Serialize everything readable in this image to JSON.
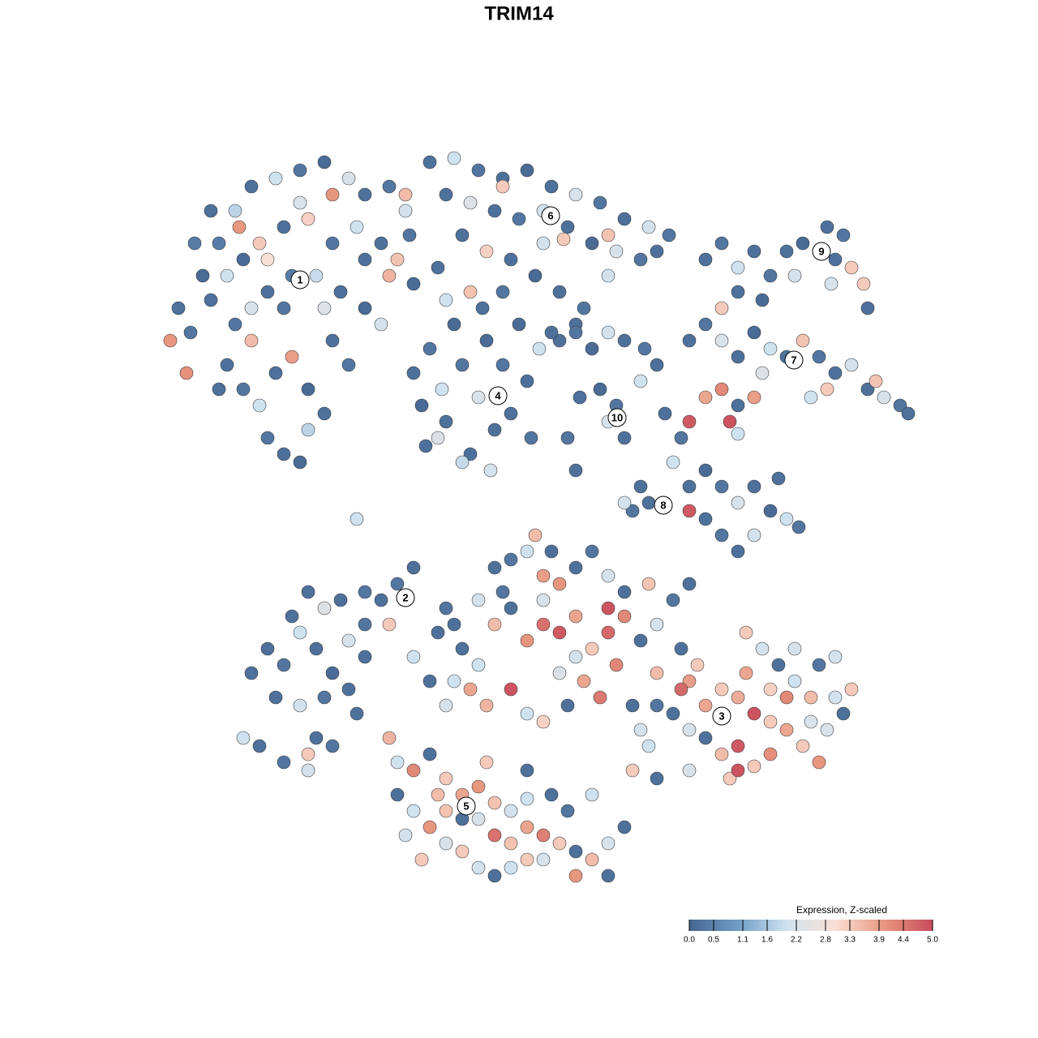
{
  "chart_data": {
    "type": "scatter",
    "title": "TRIM14",
    "xlim": [
      0,
      1000
    ],
    "ylim": [
      0,
      1000
    ],
    "clim": [
      0,
      5
    ],
    "colors": [
      "#456690",
      "#6f9cc6",
      "#cfe2f0",
      "#fae0d4",
      "#e8977f",
      "#c94b5c"
    ],
    "marker_edge_color": "#3a3a3a",
    "colorbar_title": "Expression, Z-scaled",
    "colorbar_ticks": [
      {
        "value": 0,
        "label": "0.0"
      },
      0.5,
      1.1,
      1.6,
      2.2,
      2.8,
      3.3,
      3.9,
      4.4,
      {
        "value": 5,
        "label": "5.0"
      }
    ],
    "annotations": [
      {
        "text": "1",
        "x": 220,
        "y": 755
      },
      {
        "text": "2",
        "x": 350,
        "y": 363
      },
      {
        "text": "3",
        "x": 740,
        "y": 217
      },
      {
        "text": "4",
        "x": 464,
        "y": 612
      },
      {
        "text": "5",
        "x": 425,
        "y": 106
      },
      {
        "text": "6",
        "x": 529,
        "y": 834
      },
      {
        "text": "7",
        "x": 829,
        "y": 656
      },
      {
        "text": "8",
        "x": 668,
        "y": 477
      },
      {
        "text": "9",
        "x": 863,
        "y": 790
      },
      {
        "text": "10",
        "x": 611,
        "y": 585
      }
    ],
    "x": [
      70,
      85,
      60,
      100,
      120,
      140,
      160,
      190,
      220,
      250,
      280,
      300,
      330,
      350,
      110,
      130,
      150,
      170,
      200,
      230,
      260,
      290,
      320,
      340,
      360,
      140,
      160,
      180,
      210,
      240,
      270,
      300,
      320,
      130,
      150,
      170,
      190,
      210,
      230,
      250,
      180,
      200,
      220,
      230,
      260,
      280,
      120,
      80,
      160,
      200,
      180,
      145,
      260,
      330,
      110,
      250,
      300,
      355,
      90,
      220,
      380,
      410,
      440,
      470,
      500,
      530,
      560,
      590,
      620,
      650,
      675,
      400,
      430,
      460,
      490,
      520,
      550,
      580,
      610,
      640,
      420,
      450,
      480,
      510,
      540,
      570,
      600,
      390,
      430,
      350,
      470,
      545,
      600,
      660,
      470,
      560,
      400,
      520,
      360,
      370,
      380,
      395,
      400,
      410,
      420,
      430,
      440,
      450,
      460,
      465,
      470,
      480,
      490,
      500,
      505,
      515,
      375,
      420,
      455,
      390,
      445,
      540,
      560,
      580,
      600,
      620,
      645,
      660,
      590,
      610,
      600,
      620,
      565,
      640,
      550,
      530,
      720,
      740,
      760,
      780,
      800,
      820,
      840,
      860,
      880,
      900,
      915,
      830,
      760,
      740,
      790,
      870,
      890,
      920,
      875,
      700,
      720,
      740,
      760,
      780,
      800,
      820,
      840,
      860,
      880,
      900,
      920,
      940,
      960,
      870,
      850,
      930,
      720,
      740,
      760,
      780,
      700,
      750,
      790,
      970,
      760,
      670,
      690,
      680,
      700,
      720,
      740,
      760,
      780,
      800,
      820,
      835,
      720,
      740,
      760,
      780,
      650,
      630,
      700,
      640,
      620,
      810,
      560,
      180,
      200,
      220,
      240,
      260,
      280,
      300,
      320,
      340,
      360,
      350,
      230,
      250,
      270,
      300,
      210,
      190,
      220,
      250,
      280,
      300,
      400,
      290,
      150,
      170,
      200,
      230,
      240,
      260,
      230,
      330,
      390,
      380,
      360,
      160,
      290,
      420,
      440,
      460,
      480,
      500,
      520,
      540,
      560,
      580,
      600,
      620,
      640,
      660,
      680,
      700,
      460,
      480,
      500,
      520,
      540,
      560,
      580,
      600,
      620,
      650,
      520,
      470,
      440,
      410,
      430,
      480,
      500,
      520,
      550,
      570,
      590,
      610,
      630,
      660,
      690,
      450,
      400,
      540,
      600,
      510,
      530,
      410,
      560,
      700,
      720,
      740,
      760,
      780,
      800,
      820,
      840,
      860,
      870,
      890,
      900,
      880,
      850,
      830,
      810,
      790,
      770,
      830,
      860,
      880,
      760,
      740,
      720,
      700,
      680,
      650,
      630,
      660,
      700,
      750,
      800,
      760,
      690,
      660,
      640,
      770,
      820,
      850,
      800,
      780,
      710,
      340,
      360,
      380,
      400,
      420,
      440,
      460,
      480,
      500,
      520,
      540,
      560,
      580,
      600,
      620,
      500,
      480,
      460,
      440,
      420,
      400,
      380,
      360,
      340,
      400,
      420,
      460,
      480,
      520,
      550,
      580,
      530,
      370,
      350,
      450,
      500,
      600,
      560,
      440,
      390,
      500,
      330
    ],
    "y": [
      720,
      690,
      680,
      760,
      800,
      840,
      870,
      880,
      890,
      900,
      880,
      860,
      870,
      840,
      730,
      760,
      780,
      800,
      820,
      830,
      800,
      820,
      800,
      780,
      750,
      700,
      720,
      740,
      760,
      760,
      740,
      720,
      700,
      650,
      620,
      600,
      640,
      660,
      620,
      590,
      560,
      540,
      530,
      570,
      680,
      650,
      620,
      640,
      680,
      720,
      780,
      820,
      860,
      760,
      840,
      720,
      780,
      810,
      800,
      850,
      900,
      905,
      890,
      880,
      890,
      870,
      860,
      850,
      830,
      820,
      810,
      860,
      850,
      840,
      830,
      840,
      820,
      800,
      790,
      780,
      810,
      790,
      780,
      760,
      740,
      720,
      760,
      770,
      740,
      860,
      870,
      805,
      810,
      790,
      740,
      700,
      730,
      800,
      640,
      600,
      670,
      620,
      580,
      700,
      650,
      540,
      610,
      680,
      570,
      615,
      650,
      590,
      700,
      630,
      560,
      670,
      550,
      530,
      520,
      560,
      720,
      680,
      690,
      670,
      690,
      680,
      670,
      650,
      620,
      600,
      580,
      560,
      610,
      630,
      560,
      690,
      780,
      800,
      770,
      790,
      760,
      790,
      800,
      790,
      780,
      770,
      750,
      760,
      740,
      720,
      730,
      820,
      810,
      720,
      750,
      680,
      700,
      680,
      660,
      690,
      670,
      660,
      680,
      660,
      640,
      650,
      620,
      610,
      600,
      620,
      610,
      630,
      610,
      620,
      600,
      610,
      580,
      580,
      640,
      590,
      565,
      590,
      560,
      530,
      500,
      520,
      500,
      480,
      500,
      470,
      460,
      450,
      460,
      440,
      420,
      440,
      480,
      470,
      470,
      500,
      480,
      510,
      520,
      300,
      280,
      320,
      300,
      270,
      310,
      330,
      360,
      380,
      400,
      360,
      370,
      350,
      360,
      370,
      340,
      240,
      230,
      240,
      250,
      290,
      350,
      220,
      190,
      180,
      160,
      150,
      190,
      180,
      170,
      330,
      320,
      260,
      290,
      270,
      460,
      300,
      280,
      330,
      350,
      310,
      330,
      320,
      340,
      300,
      320,
      340,
      310,
      330,
      360,
      380,
      400,
      410,
      420,
      390,
      380,
      400,
      420,
      390,
      370,
      380,
      360,
      370,
      360,
      260,
      250,
      250,
      220,
      210,
      230,
      260,
      240,
      280,
      230,
      270,
      300,
      230,
      230,
      270,
      350,
      440,
      420,
      330,
      290,
      260,
      230,
      250,
      240,
      220,
      210,
      200,
      180,
      160,
      200,
      220,
      250,
      240,
      240,
      260,
      280,
      300,
      320,
      300,
      280,
      290,
      180,
      170,
      190,
      200,
      220,
      180,
      150,
      140,
      150,
      140,
      170,
      150,
      250,
      230,
      200,
      270,
      240,
      210,
      250,
      155,
      280,
      160,
      150,
      170,
      140,
      120,
      130,
      110,
      100,
      80,
      70,
      60,
      50,
      40,
      60,
      80,
      40,
      30,
      20,
      30,
      50,
      60,
      80,
      100,
      120,
      100,
      90,
      70,
      60,
      40,
      100,
      120,
      120,
      40,
      70,
      160,
      150,
      20,
      20,
      90,
      120,
      115,
      190
    ],
    "values": [
      0.2,
      0.3,
      4.0,
      0.1,
      0.4,
      1.8,
      0.2,
      2.0,
      0.3,
      0.1,
      2.2,
      0.2,
      0.3,
      2.1,
      0.2,
      2.0,
      0.1,
      3.3,
      0.2,
      3.2,
      0.3,
      2.0,
      0.2,
      3.4,
      0.1,
      0.3,
      2.2,
      0.2,
      0.4,
      1.9,
      0.2,
      0.1,
      2.1,
      0.2,
      0.3,
      2.0,
      0.2,
      3.9,
      0.1,
      0.2,
      0.3,
      0.2,
      0.1,
      1.8,
      0.2,
      0.3,
      0.2,
      4.1,
      3.5,
      0.3,
      3.0,
      4.0,
      4.0,
      3.6,
      0.2,
      2.3,
      0.2,
      0.3,
      0.4,
      2.2,
      0.2,
      2.0,
      0.3,
      0.2,
      0.1,
      0.2,
      2.2,
      0.3,
      0.2,
      2.1,
      0.3,
      0.2,
      2.3,
      0.2,
      0.3,
      2.0,
      0.2,
      0.1,
      2.2,
      0.3,
      0.2,
      3.2,
      0.2,
      0.1,
      0.2,
      0.3,
      2.1,
      0.2,
      3.4,
      3.5,
      3.3,
      3.3,
      3.4,
      0.2,
      0.3,
      0.2,
      2.0,
      2.1,
      0.2,
      0.1,
      0.3,
      2.0,
      0.2,
      0.1,
      0.3,
      0.2,
      2.2,
      0.1,
      0.2,
      2.4,
      0.3,
      0.2,
      0.1,
      0.2,
      0.3,
      2.0,
      0.2,
      1.9,
      2.1,
      2.3,
      0.2,
      0.2,
      0.3,
      0.1,
      2.1,
      0.2,
      0.3,
      0.2,
      0.1,
      0.3,
      2.2,
      0.2,
      0.2,
      2.0,
      0.3,
      0.2,
      0.2,
      0.3,
      2.0,
      0.2,
      0.3,
      0.2,
      0.1,
      3.2,
      0.2,
      3.3,
      3.3,
      2.1,
      0.2,
      3.3,
      0.1,
      0.2,
      0.3,
      0.2,
      2.2,
      0.2,
      0.3,
      2.2,
      0.2,
      0.1,
      2.0,
      0.2,
      3.4,
      0.3,
      0.2,
      2.1,
      0.2,
      2.2,
      0.3,
      3.3,
      2.0,
      3.4,
      3.8,
      4.2,
      0.2,
      3.9,
      4.8,
      4.9,
      2.3,
      0.2,
      2.0,
      0.2,
      0.3,
      2.0,
      0.2,
      0.1,
      0.3,
      2.2,
      0.2,
      0.1,
      2.0,
      0.3,
      0.2,
      0.3,
      0.2,
      2.1,
      0.2,
      0.3,
      4.8,
      0.2,
      2.1,
      0.2,
      0.2,
      0.2,
      0.3,
      2.0,
      0.2,
      0.1,
      2.2,
      0.3,
      0.2,
      0.3,
      0.2,
      2.0,
      0.2,
      2.3,
      0.2,
      0.3,
      0.2,
      0.2,
      2.1,
      0.3,
      0.2,
      0.2,
      0.3,
      0.2,
      2.0,
      0.2,
      0.3,
      2.1,
      0.2,
      0.3,
      3.3,
      3.3,
      0.2,
      0.2,
      2.0,
      0.2,
      2.0,
      0.2,
      2.0,
      3.5,
      0.2,
      4.0,
      4.5,
      4.8,
      3.8,
      3.3,
      4.6,
      4.2,
      0.2,
      2.1,
      0.3,
      0.2,
      0.2,
      0.3,
      2.0,
      3.9,
      4.0,
      0.2,
      0.3,
      2.1,
      0.2,
      3.4,
      2.2,
      0.3,
      2.1,
      2.0,
      3.8,
      4.9,
      2.0,
      3.2,
      0.2,
      3.8,
      4.4,
      4.2,
      0.2,
      3.5,
      0.2,
      3.6,
      2.2,
      2.3,
      4.9,
      3.5,
      0.2,
      0.2,
      2.1,
      3.9,
      3.8,
      3.3,
      3.7,
      4.9,
      3.3,
      3.8,
      3.3,
      4.0,
      2.2,
      0.2,
      3.3,
      2.1,
      3.5,
      2.0,
      0.2,
      2.1,
      3.3,
      2.2,
      0.3,
      2.1,
      4.8,
      3.5,
      0.2,
      2.2,
      0.2,
      2.0,
      3.3,
      0.2,
      2.2,
      3.3,
      4.1,
      4.9,
      4.6,
      0.3,
      2.1,
      3.8,
      4.2,
      2.2,
      3.2,
      3.3,
      3.3,
      2.0,
      4.2,
      0.2,
      3.3,
      3.8,
      4.0,
      3.4,
      2.1,
      3.8,
      4.3,
      3.3,
      0.2,
      3.5,
      2.2,
      0.2,
      3.3,
      2.0,
      0.2,
      2.1,
      3.3,
      2.2,
      4.0,
      2.0,
      0.2,
      3.4,
      0.2,
      4.5,
      3.4,
      2.2,
      0.3,
      2.0,
      0.2,
      3.3,
      2.1,
      3.3,
      0.2,
      0.2,
      4.0,
      2.2,
      3.5,
      2.0,
      3.6
    ]
  }
}
